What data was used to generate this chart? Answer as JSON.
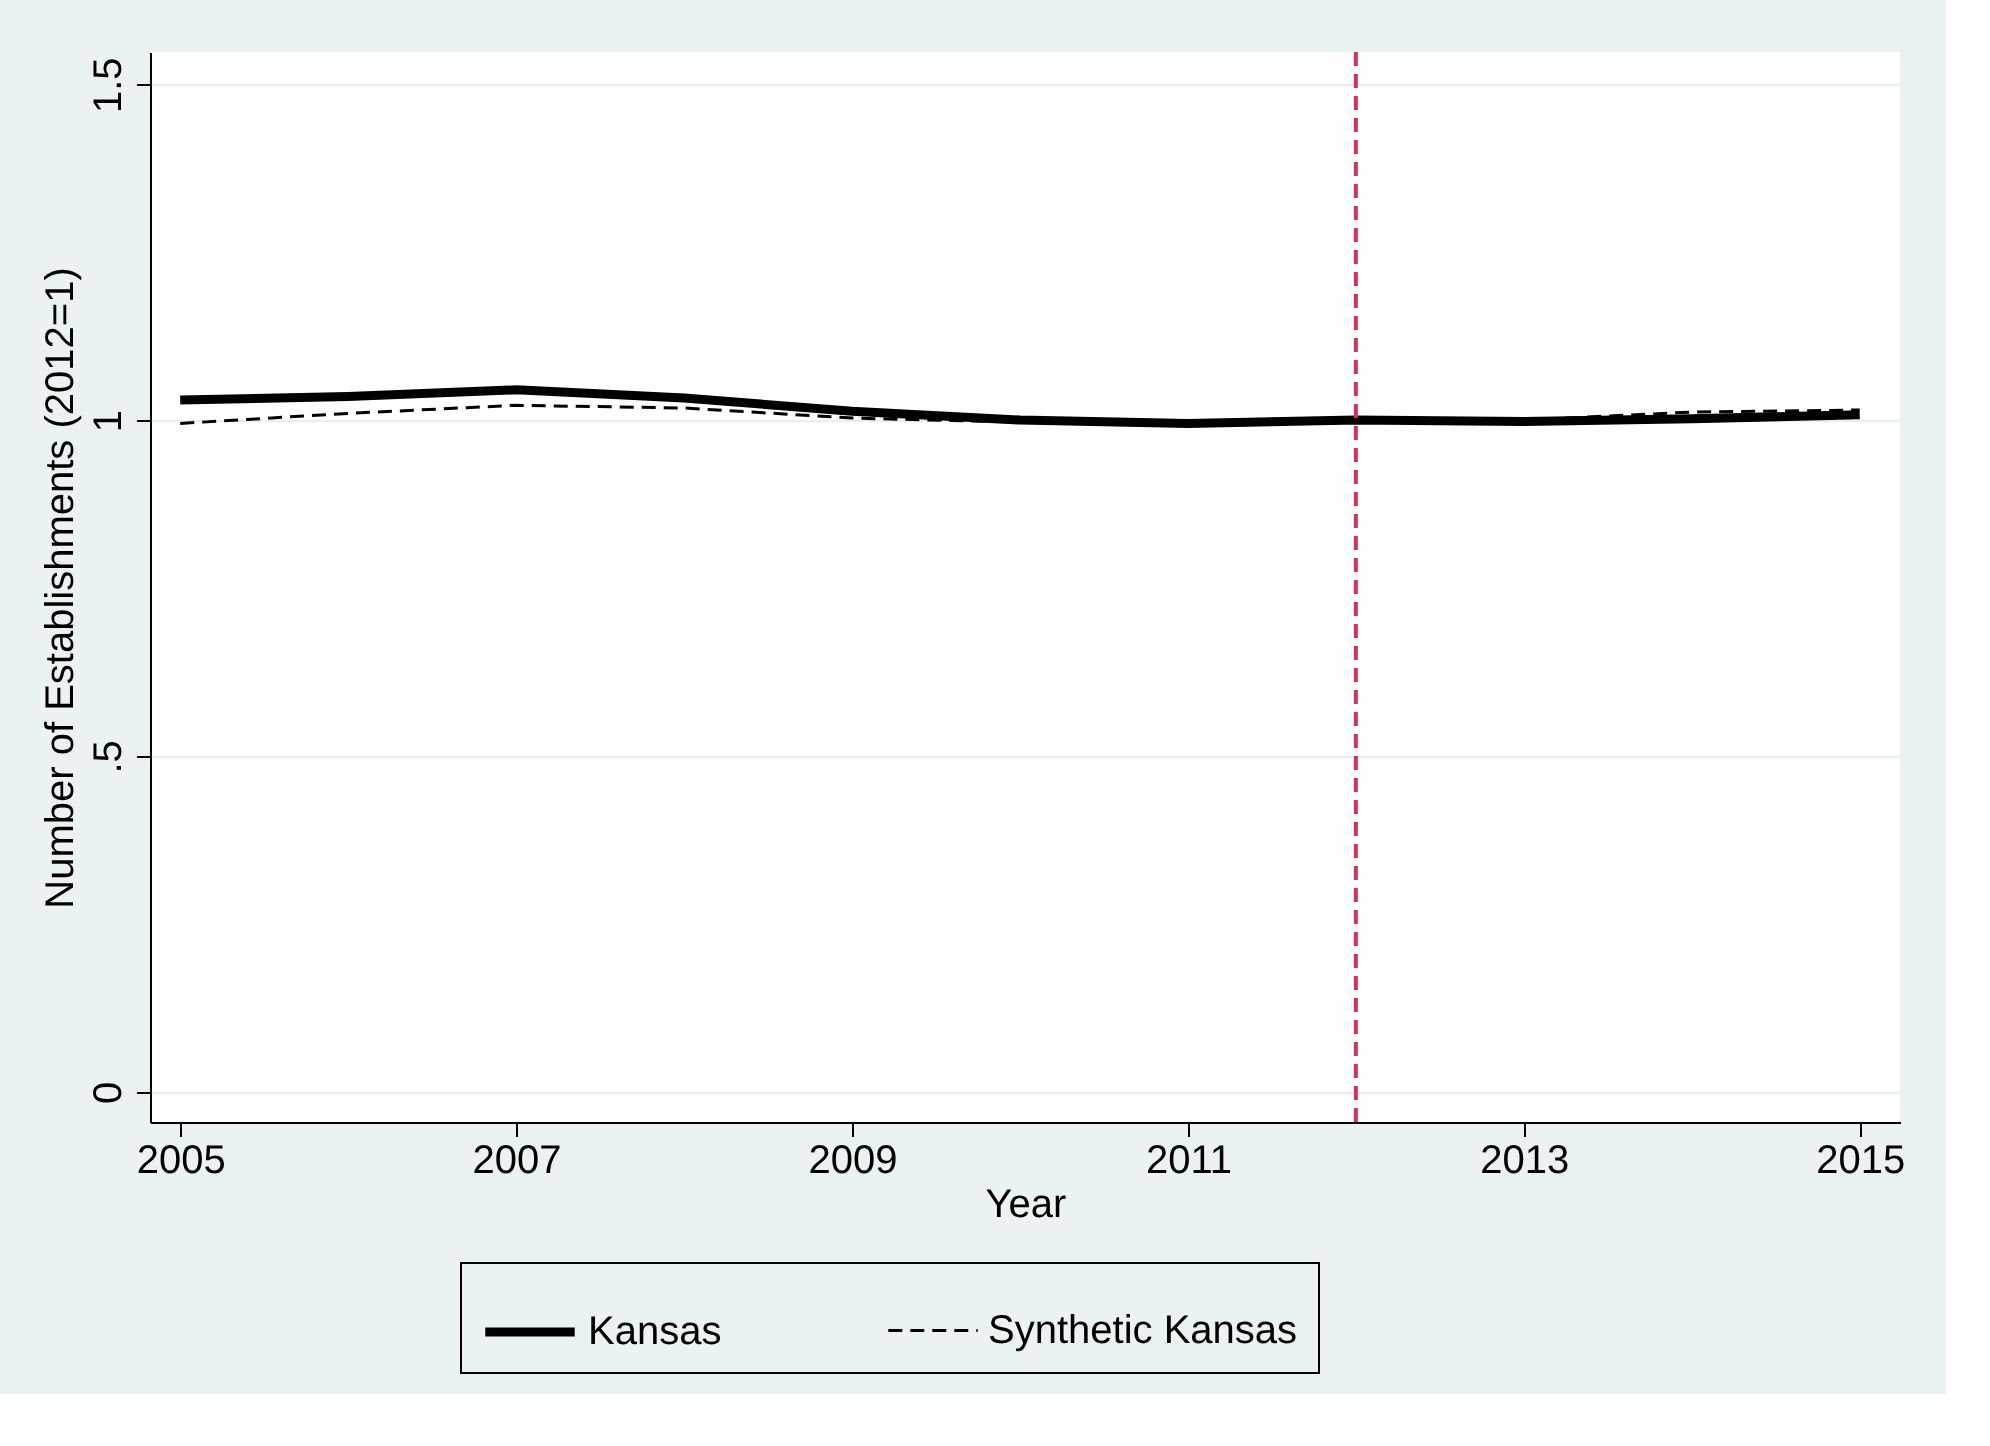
{
  "chart_data": {
    "type": "line",
    "xlabel": "Year",
    "ylabel": "Number of Establishments (2012=1)",
    "x": [
      2005,
      2006,
      2007,
      2008,
      2009,
      2010,
      2011,
      2012,
      2013,
      2014,
      2015
    ],
    "series": [
      {
        "name": "Kansas",
        "color": "#000000",
        "line_style": "solid",
        "values": [
          1.03,
          1.035,
          1.045,
          1.033,
          1.013,
          1.0,
          0.995,
          1.0,
          0.998,
          1.002,
          1.008
        ]
      },
      {
        "name": "Synthetic Kansas",
        "color": "#000000",
        "line_style": "dashed",
        "values": [
          0.995,
          1.01,
          1.022,
          1.018,
          1.003,
          0.997,
          0.995,
          1.0,
          1.0,
          1.012,
          1.015
        ]
      }
    ],
    "xlim": [
      2004.82,
      2015.24
    ],
    "ylim": [
      -0.045,
      1.548
    ],
    "xticks": [
      2005,
      2007,
      2009,
      2011,
      2013,
      2015
    ],
    "yticks": [
      0,
      {
        "value": 0.5,
        "label": ".5"
      },
      1,
      1.5
    ],
    "ref_lines": [
      {
        "axis": "x",
        "value": 2012,
        "color": "#d6305e",
        "line_style": "dashed"
      }
    ],
    "grid": "y",
    "legend": "bottom",
    "marker": "none"
  }
}
